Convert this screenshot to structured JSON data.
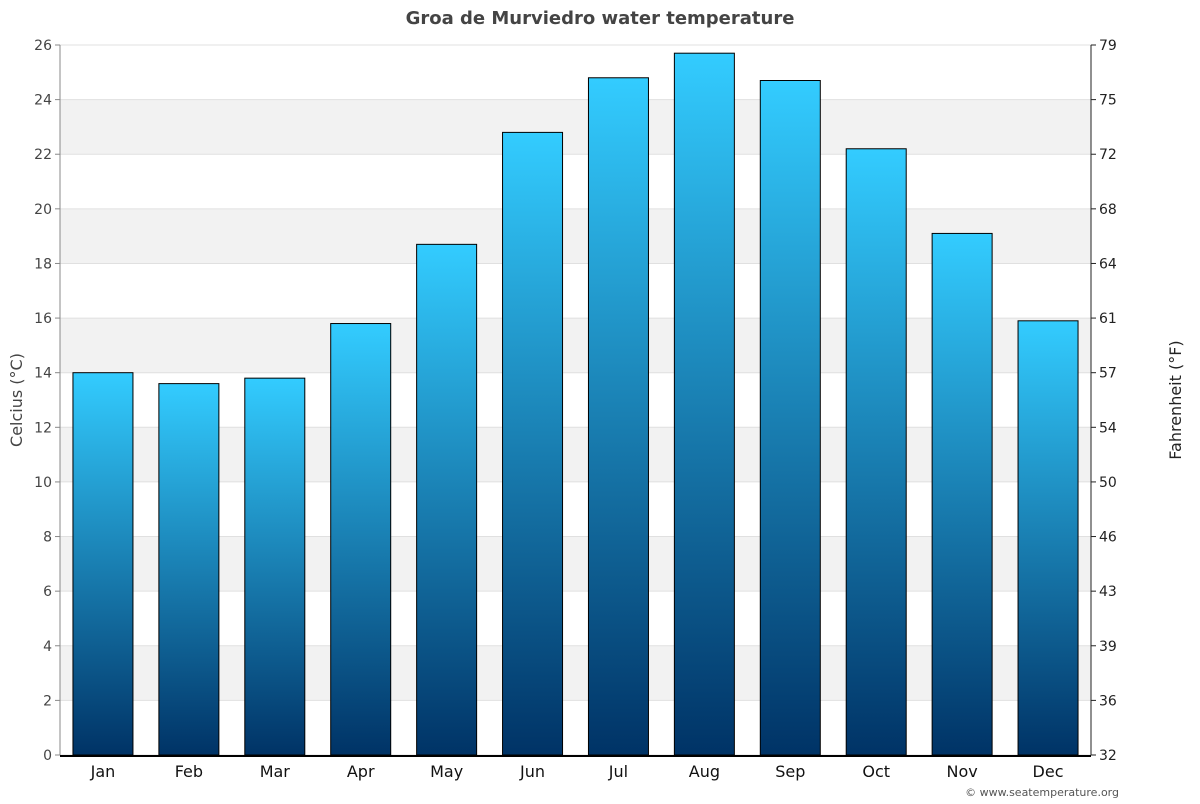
{
  "chart_data": {
    "type": "bar",
    "title": "Groa de Murviedro water temperature",
    "categories": [
      "Jan",
      "Feb",
      "Mar",
      "Apr",
      "May",
      "Jun",
      "Jul",
      "Aug",
      "Sep",
      "Oct",
      "Nov",
      "Dec"
    ],
    "values": [
      14.0,
      13.6,
      13.8,
      15.8,
      18.7,
      22.8,
      24.8,
      25.7,
      24.7,
      22.2,
      19.1,
      15.9
    ],
    "xlabel": "",
    "ylabel": "Celcius (°C)",
    "y2label": "Fahrenheit (°F)",
    "ylim": [
      0,
      26
    ],
    "yticks": [
      0,
      2,
      4,
      6,
      8,
      10,
      12,
      14,
      16,
      18,
      20,
      22,
      24,
      26
    ],
    "y2ticks": [
      "32",
      "36",
      "39",
      "43",
      "46",
      "50",
      "54",
      "57",
      "61",
      "64",
      "68",
      "72",
      "75",
      "79"
    ],
    "grid": true,
    "colors": {
      "bar_top": "#33ccff",
      "bar_bottom": "#003366",
      "band": "#f2f2f2"
    }
  },
  "footer": {
    "credit": "© www.seatemperature.org"
  }
}
